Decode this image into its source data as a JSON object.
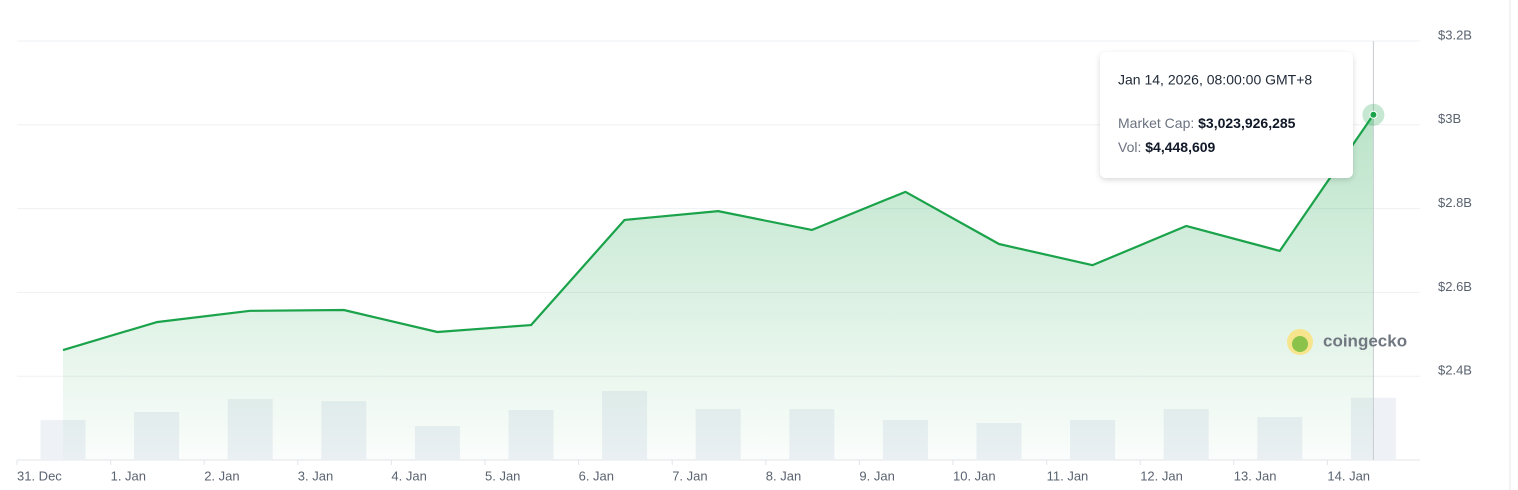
{
  "chart_data": {
    "type": "line",
    "categories": [
      "31. Dec",
      "1. Jan",
      "2. Jan",
      "3. Jan",
      "4. Jan",
      "5. Jan",
      "6. Jan",
      "7. Jan",
      "8. Jan",
      "9. Jan",
      "10. Jan",
      "11. Jan",
      "12. Jan",
      "13. Jan",
      "14. Jan"
    ],
    "series": [
      {
        "color": "#1aa34a",
        "values": [
          2462500000,
          2529000000,
          2556000000,
          2558000000,
          2505500000,
          2522000000,
          2773000000,
          2794000000,
          2749000000,
          2840000000,
          2715500000,
          2665000000,
          2758500000,
          2699000000,
          3023926285
        ]
      },
      {
        "type": "bar",
        "axis": "y2",
        "color": "#eef1f6",
        "values": [
          2860000,
          3430000,
          4360000,
          4210000,
          2430000,
          3570000,
          4930000,
          3640000,
          3640000,
          2860000,
          2640000,
          2860000,
          3640000,
          3070000,
          4448609
        ]
      }
    ],
    "ylim": [
      2200000000,
      3200000000
    ],
    "yticks": [
      {
        "value": 2400000000,
        "label": "$2.4B"
      },
      {
        "value": 2600000000,
        "label": "$2.6B"
      },
      {
        "value": 2800000000,
        "label": "$2.8B"
      },
      {
        "value": 3000000000,
        "label": "$3B"
      },
      {
        "value": 3200000000,
        "label": "$3.2B"
      }
    ],
    "y2lim": [
      0,
      6000000
    ],
    "grid": true,
    "tooltip": {
      "date": "Jan 14, 2026, 08:00:00 GMT+8",
      "cap_label": "Market Cap:",
      "cap_value": "$3,023,926,285",
      "vol_label": "Vol:",
      "vol_value": "$4,448,609"
    },
    "watermark": "coingecko"
  }
}
